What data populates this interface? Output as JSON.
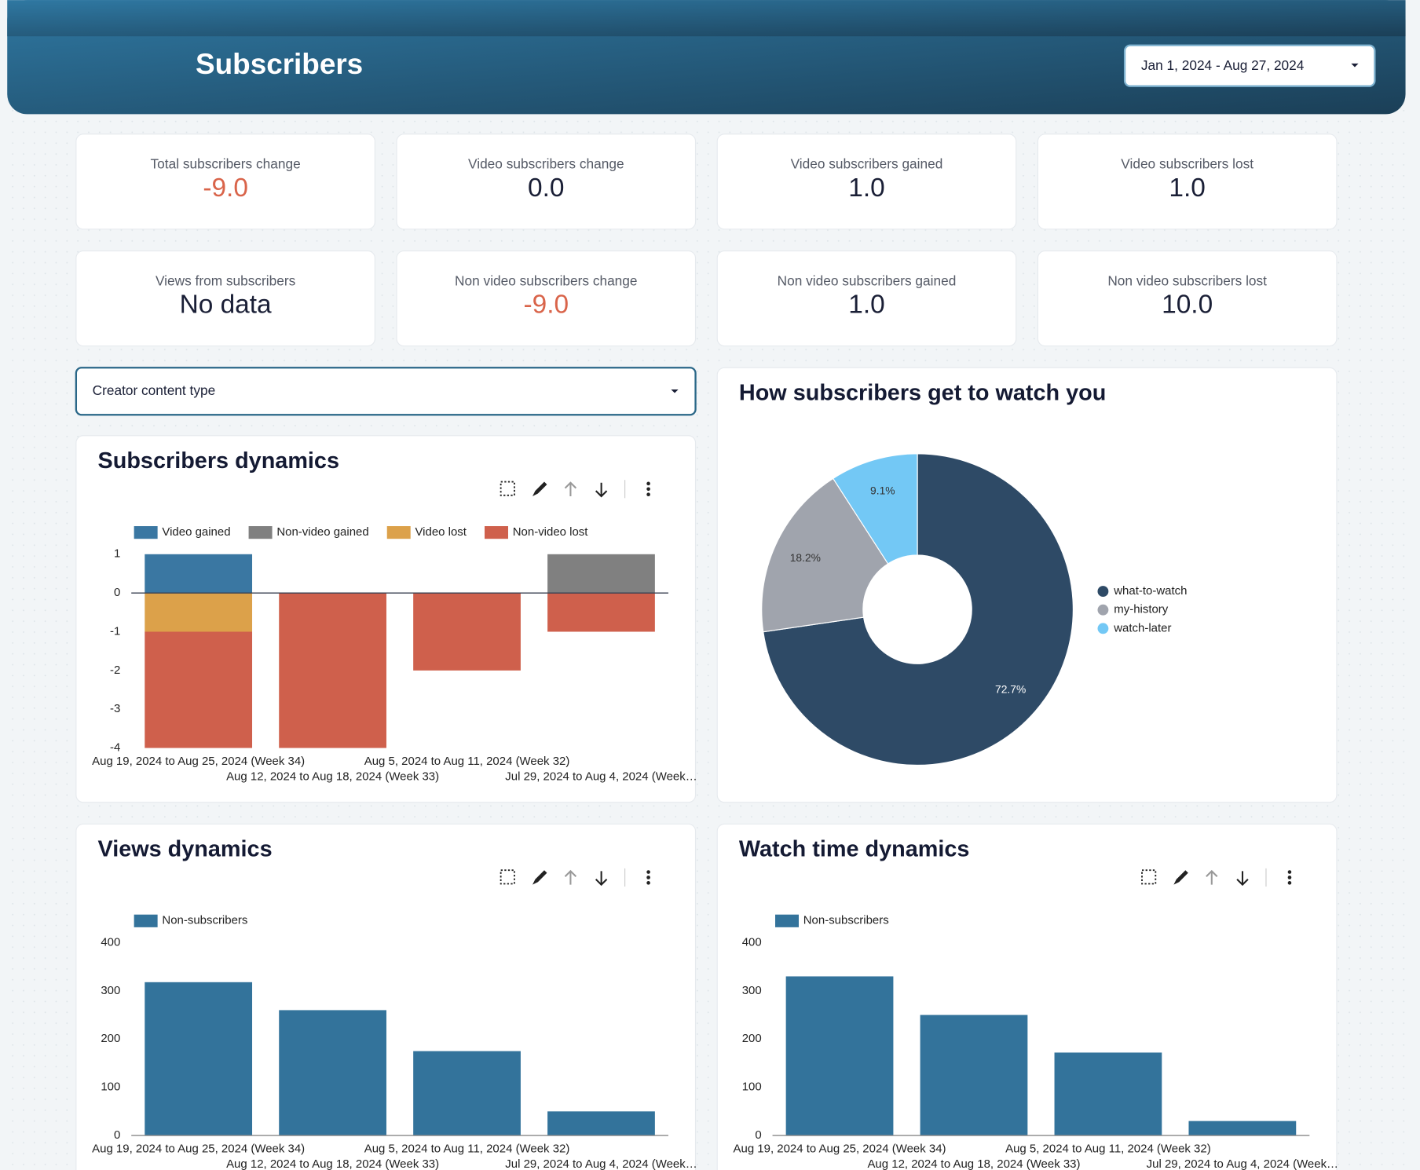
{
  "header": {
    "title": "Subscribers",
    "date_range": "Jan 1, 2024 - Aug 27, 2024"
  },
  "kpis": [
    {
      "label": "Total subscribers change",
      "value": "-9.0",
      "color": "#d9644a"
    },
    {
      "label": "Video subscribers change",
      "value": "0.0",
      "color": "#1a1f36"
    },
    {
      "label": "Video subscribers gained",
      "value": "1.0",
      "color": "#1a1f36"
    },
    {
      "label": "Video subscribers lost",
      "value": "1.0",
      "color": "#1a1f36"
    },
    {
      "label": "Views from subscribers",
      "value": "No data",
      "color": "#1a1f36"
    },
    {
      "label": "Non video subscribers change",
      "value": "-9.0",
      "color": "#d9644a"
    },
    {
      "label": "Non video subscribers gained",
      "value": "1.0",
      "color": "#1a1f36"
    },
    {
      "label": "Non video subscribers lost",
      "value": "10.0",
      "color": "#1a1f36"
    }
  ],
  "filter": {
    "label": "Creator content type"
  },
  "chart_data": [
    {
      "type": "stacked-bar",
      "title": "Subscribers dynamics",
      "categories": [
        "Aug 19, 2024 to Aug 25, 2024 (Week 34)",
        "Aug 12, 2024 to Aug 18, 2024 (Week 33)",
        "Aug 5, 2024 to Aug 11, 2024 (Week 32)",
        "Jul 29, 2024 to Aug 4, 2024 (Week…"
      ],
      "series": [
        {
          "name": "Video gained",
          "color": "#3a77a2",
          "values": [
            1,
            0,
            0,
            0
          ]
        },
        {
          "name": "Non-video gained",
          "color": "#808080",
          "values": [
            0,
            0,
            0,
            1
          ]
        },
        {
          "name": "Video lost",
          "color": "#dca14a",
          "values": [
            -1,
            0,
            0,
            0
          ]
        },
        {
          "name": "Non-video lost",
          "color": "#cf604c",
          "values": [
            -3,
            -4,
            -2,
            -1
          ]
        }
      ],
      "ylim": [
        -4,
        1
      ],
      "yticks": [
        1,
        0,
        -1,
        -2,
        -3,
        -4
      ],
      "grid": false
    },
    {
      "type": "pie",
      "title": "How subscribers get to watch you",
      "labels": [
        "what-to-watch",
        "my-history",
        "watch-later"
      ],
      "values": [
        72.7,
        18.2,
        9.1
      ],
      "value_labels": [
        "72.7%",
        "18.2%",
        "9.1%"
      ],
      "colors": [
        "#2e4a66",
        "#a0a4ad",
        "#73c8f5"
      ]
    },
    {
      "type": "bar",
      "title": "Views dynamics",
      "categories": [
        "Aug 19, 2024 to Aug 25, 2024 (Week 34)",
        "Aug 12, 2024 to Aug 18, 2024 (Week 33)",
        "Aug 5, 2024 to Aug 11, 2024 (Week 32)",
        "Jul 29, 2024 to Aug 4, 2024 (Week…"
      ],
      "series": [
        {
          "name": "Non-subscribers",
          "color": "#33739b",
          "values": [
            318,
            260,
            175,
            50
          ]
        }
      ],
      "ylim": [
        0,
        400
      ],
      "yticks": [
        0,
        100,
        200,
        300,
        400
      ],
      "grid": false
    },
    {
      "type": "bar",
      "title": "Watch time dynamics",
      "categories": [
        "Aug 19, 2024 to Aug 25, 2024 (Week 34)",
        "Aug 12, 2024 to Aug 18, 2024 (Week 33)",
        "Aug 5, 2024 to Aug 11, 2024 (Week 32)",
        "Jul 29, 2024 to Aug 4, 2024 (Week…"
      ],
      "series": [
        {
          "name": "Non-subscribers",
          "color": "#33739b",
          "values": [
            330,
            250,
            172,
            30
          ]
        }
      ],
      "ylim": [
        0,
        400
      ],
      "yticks": [
        0,
        100,
        200,
        300,
        400
      ],
      "grid": false
    }
  ]
}
